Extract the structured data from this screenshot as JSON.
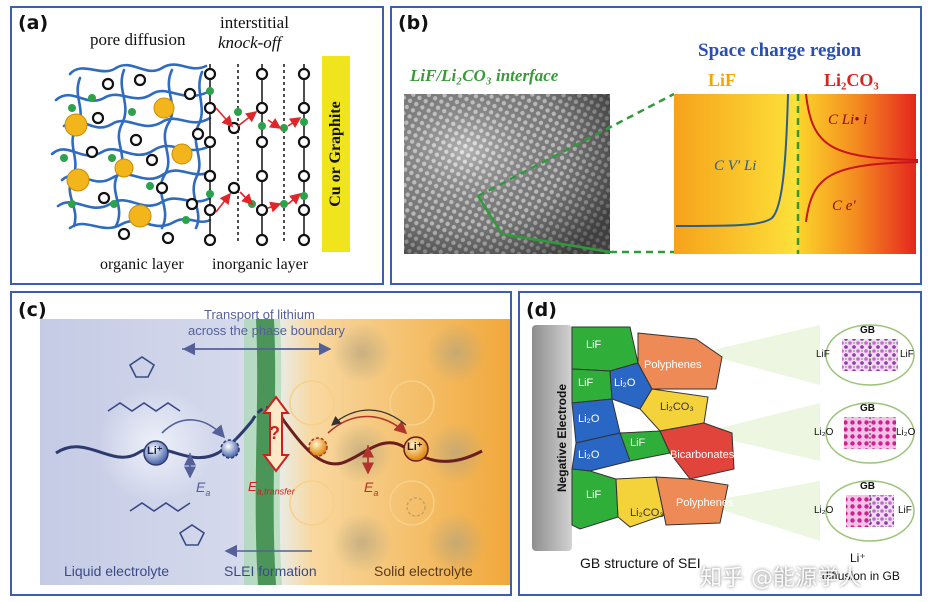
{
  "panel_a": {
    "label": "(a)",
    "pore_diffusion": "pore diffusion",
    "interstitial": "interstitial",
    "knock_off": "knock-off",
    "collector": "Cu or Graphite",
    "organic_layer": "organic layer",
    "inorganic_layer": "inorganic layer",
    "colors": {
      "frame": "#3b5fa8",
      "polymer": "#2f6bbf",
      "particle": "#f3b51c",
      "li_ion": "#2ca24a",
      "arrow": "#e0262b",
      "collector": "#f0e51c"
    }
  },
  "panel_b": {
    "label": "(b)",
    "interface_title": "LiF/Li₂CO₃ interface",
    "space_charge": "Space charge region",
    "lif": "LiF",
    "li2co3": "Li₂CO₃",
    "curve_vacancy": "C V′ Li",
    "curve_interstitial": "C Li• i",
    "curve_electron": "C e′",
    "colors": {
      "title": "#2a4fb0",
      "interface": "#3a9a3a",
      "lif": "#f5a400",
      "li2co3": "#d9231d",
      "vac_curve": "#2b5d8f",
      "red_curve": "#c8141b"
    }
  },
  "panel_c": {
    "label": "(c)",
    "transport_line1": "Transport of lithium",
    "transport_line2": "across the phase boundary",
    "li_ion": "Li⁺",
    "ea": "E",
    "ea_sub": "a",
    "ea_transfer": "E",
    "ea_transfer_sub": "a,transfer",
    "question": "?",
    "liquid": "Liquid electrolyte",
    "slei": "SLEI formation",
    "solid": "Solid electrolyte",
    "colors": {
      "liquid": "#c7cde6",
      "slei": "#3f8d4e",
      "solid": "#f0a52a",
      "wave": "#2d3a6e",
      "accent": "#c0392b"
    }
  },
  "panel_d": {
    "label": "(d)",
    "electrode": "Negative Electrode",
    "grains": [
      "LiF",
      "LiF",
      "Li₂O",
      "Li₂O",
      "Polyphenes",
      "Li₂CO₃",
      "LiF",
      "Li₂O",
      "Bicarbonates",
      "LiF",
      "Li₂CO₃",
      "Polyphenes"
    ],
    "insets": [
      {
        "gb": "GB",
        "left": "LiF",
        "right": "LiF"
      },
      {
        "gb": "GB",
        "left": "Li₂O",
        "right": "Li₂O"
      },
      {
        "gb": "GB",
        "left": "Li₂O",
        "right": "LiF"
      }
    ],
    "caption": "GB structure of SEI",
    "caption2_line1": "Li⁺",
    "caption2_line2": "diffusion in GB",
    "colors": {
      "lif": "#2fae3a",
      "li2o": "#2a66c4",
      "li2co3": "#f4d23a",
      "polyphenes": "#ee8a55",
      "bicarbonates": "#e0443a"
    }
  },
  "watermark": "知乎 @能源学人"
}
